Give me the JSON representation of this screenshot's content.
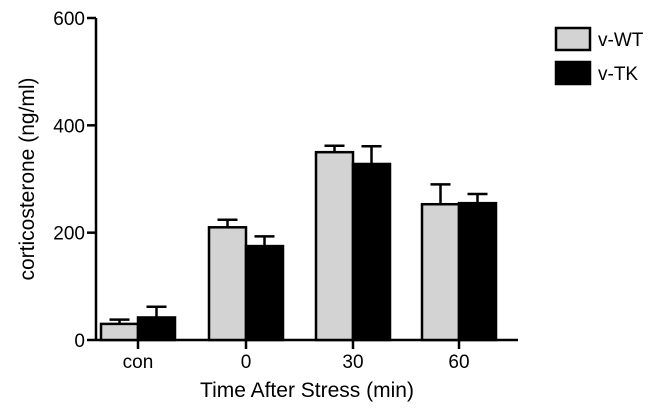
{
  "chart_data": {
    "type": "bar",
    "xlabel": "Time After Stress (min)",
    "ylabel": "corticosterone (ng/ml)",
    "ylim": [
      0,
      600
    ],
    "yticks": [
      "0",
      "200",
      "400",
      "600"
    ],
    "categories": [
      "con",
      "0",
      "30",
      "60"
    ],
    "series": [
      {
        "name": "v-WT",
        "color": "#d3d3d3",
        "values": [
          30,
          210,
          350,
          253
        ],
        "errors": [
          8,
          14,
          12,
          37
        ]
      },
      {
        "name": "v-TK",
        "color": "#000000",
        "values": [
          42,
          175,
          328,
          255
        ],
        "errors": [
          20,
          18,
          33,
          17
        ]
      }
    ],
    "error_bars": "upper",
    "grid": false,
    "legend_position": "top-right"
  }
}
